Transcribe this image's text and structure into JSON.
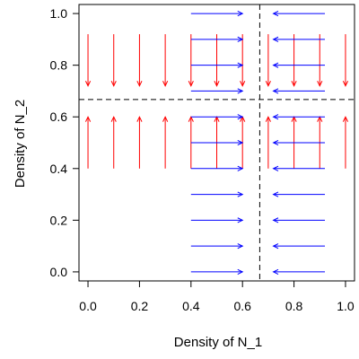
{
  "chart_data": {
    "type": "vector-field",
    "xlabel": "Density of N_1",
    "ylabel": "Density of N_2",
    "xlim": [
      -0.035,
      1.035
    ],
    "ylim": [
      -0.035,
      1.035
    ],
    "xticks": [
      "0.0",
      "0.2",
      "0.4",
      "0.6",
      "0.8",
      "1.0"
    ],
    "yticks": [
      "0.0",
      "0.2",
      "0.4",
      "0.6",
      "0.8",
      "1.0"
    ],
    "x_tick_values": [
      0,
      0.2,
      0.4,
      0.6,
      0.8,
      1.0
    ],
    "y_tick_values": [
      0,
      0.2,
      0.4,
      0.6,
      0.8,
      1.0
    ],
    "threshold_x": 0.667,
    "threshold_y": 0.667,
    "colors": {
      "n1_arrows": "#0000ff",
      "n2_arrows": "#ff0000",
      "threshold": "#000000"
    },
    "series": [
      {
        "orientation": "horizontal",
        "y_values": [
          0,
          0.1,
          0.2,
          0.3,
          0.4,
          0.5,
          0.6,
          0.7,
          0.8,
          0.9,
          1.0
        ],
        "left_group": {
          "x_from": 0.4,
          "x_to": 0.6
        },
        "right_group": {
          "x_from": 0.92,
          "x_to": 0.72
        }
      },
      {
        "orientation": "vertical",
        "x_values": [
          0,
          0.1,
          0.2,
          0.3,
          0.4,
          0.5,
          0.6,
          0.7,
          0.8,
          0.9,
          1.0
        ],
        "upper_group": {
          "y_from": 0.92,
          "y_to": 0.72
        },
        "lower_group": {
          "y_from": 0.4,
          "y_to": 0.6
        }
      }
    ]
  }
}
